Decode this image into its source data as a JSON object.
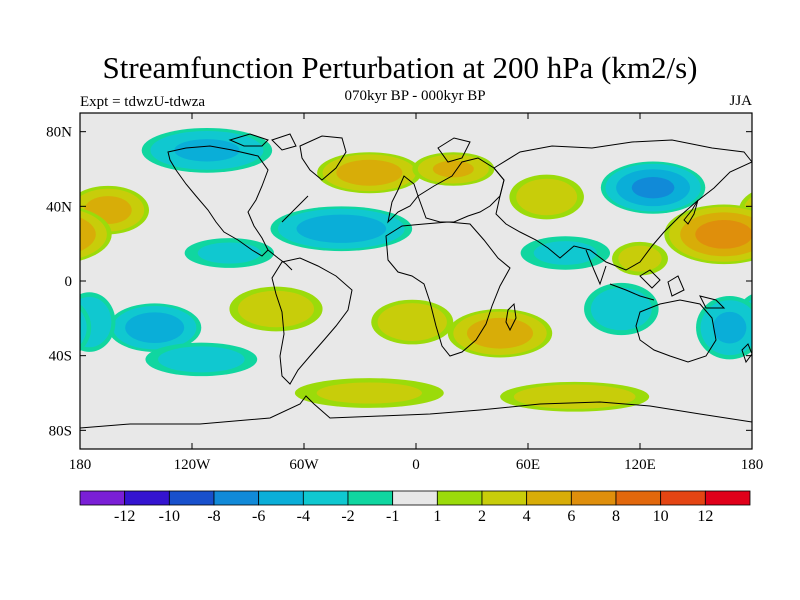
{
  "title": "Streamfunction Perturbation at 200 hPa (km2/s)",
  "subtitle": "070kyr BP - 000kyr BP",
  "left_label": "Expt = tdwzU-tdwza",
  "right_label": "JJA",
  "chart_data": {
    "type": "heatmap",
    "title": "Streamfunction Perturbation at 200 hPa (km2/s)",
    "subtitle": "070kyr BP - 000kyr BP",
    "xlabel": "",
    "ylabel": "",
    "xlim": [
      -180,
      180
    ],
    "ylim": [
      -90,
      90
    ],
    "x_ticks": [
      {
        "value": -180,
        "label": "180"
      },
      {
        "value": -120,
        "label": "120W"
      },
      {
        "value": -60,
        "label": "60W"
      },
      {
        "value": 0,
        "label": "0"
      },
      {
        "value": 60,
        "label": "60E"
      },
      {
        "value": 120,
        "label": "120E"
      },
      {
        "value": 180,
        "label": "180"
      }
    ],
    "y_ticks": [
      {
        "value": 80,
        "label": "80N"
      },
      {
        "value": 40,
        "label": "40N"
      },
      {
        "value": 0,
        "label": "0"
      },
      {
        "value": -40,
        "label": "40S"
      },
      {
        "value": -80,
        "label": "80S"
      }
    ],
    "colorbar": {
      "colors": [
        "#7a1fd6",
        "#3414d0",
        "#1850cc",
        "#118ad8",
        "#0aaed8",
        "#10c8d0",
        "#10d6a0",
        "#e8e8e8",
        "#9bdb0a",
        "#c8cd0a",
        "#d8ad08",
        "#df8f0c",
        "#e2680c",
        "#e44513",
        "#e0001a"
      ],
      "labels": [
        {
          "edge": 1,
          "text": "-12"
        },
        {
          "edge": 2,
          "text": "-10"
        },
        {
          "edge": 3,
          "text": "-8"
        },
        {
          "edge": 4,
          "text": "-6"
        },
        {
          "edge": 5,
          "text": "-4"
        },
        {
          "edge": 6,
          "text": "-2"
        },
        {
          "edge": 7,
          "text": "-1"
        },
        {
          "edge": 8,
          "text": "1"
        },
        {
          "edge": 9,
          "text": "2"
        },
        {
          "edge": 10,
          "text": "4"
        },
        {
          "edge": 11,
          "text": "6"
        },
        {
          "edge": 12,
          "text": "8"
        },
        {
          "edge": 13,
          "text": "10"
        },
        {
          "edge": 14,
          "text": "12"
        }
      ]
    },
    "anomaly_centers": [
      {
        "lon": -165,
        "lat": 38,
        "value": 4.5,
        "rlon": 22,
        "rlat": 13
      },
      {
        "lon": -140,
        "lat": -25,
        "value": -5,
        "rlon": 25,
        "rlat": 13
      },
      {
        "lon": -175,
        "lat": -22,
        "value": -3.5,
        "rlon": 14,
        "rlat": 16
      },
      {
        "lon": -112,
        "lat": 70,
        "value": -4,
        "rlon": 35,
        "rlat": 12
      },
      {
        "lon": -40,
        "lat": 28,
        "value": -5,
        "rlon": 38,
        "rlat": 12
      },
      {
        "lon": -115,
        "lat": -42,
        "value": -2.5,
        "rlon": 30,
        "rlat": 9
      },
      {
        "lon": -25,
        "lat": 58,
        "value": 5,
        "rlon": 28,
        "rlat": 11
      },
      {
        "lon": 20,
        "lat": 60,
        "value": 4,
        "rlon": 22,
        "rlat": 9
      },
      {
        "lon": 70,
        "lat": 45,
        "value": 3,
        "rlon": 20,
        "rlat": 12
      },
      {
        "lon": 127,
        "lat": 50,
        "value": -6,
        "rlon": 28,
        "rlat": 14
      },
      {
        "lon": 165,
        "lat": 25,
        "value": 6.5,
        "rlon": 32,
        "rlat": 16
      },
      {
        "lon": -75,
        "lat": -15,
        "value": 3,
        "rlon": 25,
        "rlat": 12
      },
      {
        "lon": -2,
        "lat": -22,
        "value": 3.5,
        "rlon": 22,
        "rlat": 12
      },
      {
        "lon": 45,
        "lat": -28,
        "value": 5,
        "rlon": 28,
        "rlat": 13
      },
      {
        "lon": 110,
        "lat": -15,
        "value": -3,
        "rlon": 20,
        "rlat": 14
      },
      {
        "lon": 168,
        "lat": -25,
        "value": -4,
        "rlon": 18,
        "rlat": 17
      },
      {
        "lon": 85,
        "lat": -62,
        "value": 3,
        "rlon": 40,
        "rlat": 8
      },
      {
        "lon": -100,
        "lat": 15,
        "value": -2,
        "rlon": 24,
        "rlat": 8
      },
      {
        "lon": 80,
        "lat": 15,
        "value": -2,
        "rlon": 24,
        "rlat": 9
      },
      {
        "lon": -25,
        "lat": -60,
        "value": 2,
        "rlon": 40,
        "rlat": 8
      },
      {
        "lon": 120,
        "lat": 12,
        "value": 2.5,
        "rlon": 15,
        "rlat": 9
      }
    ],
    "grid": false,
    "legend": "bottom colorbar"
  }
}
